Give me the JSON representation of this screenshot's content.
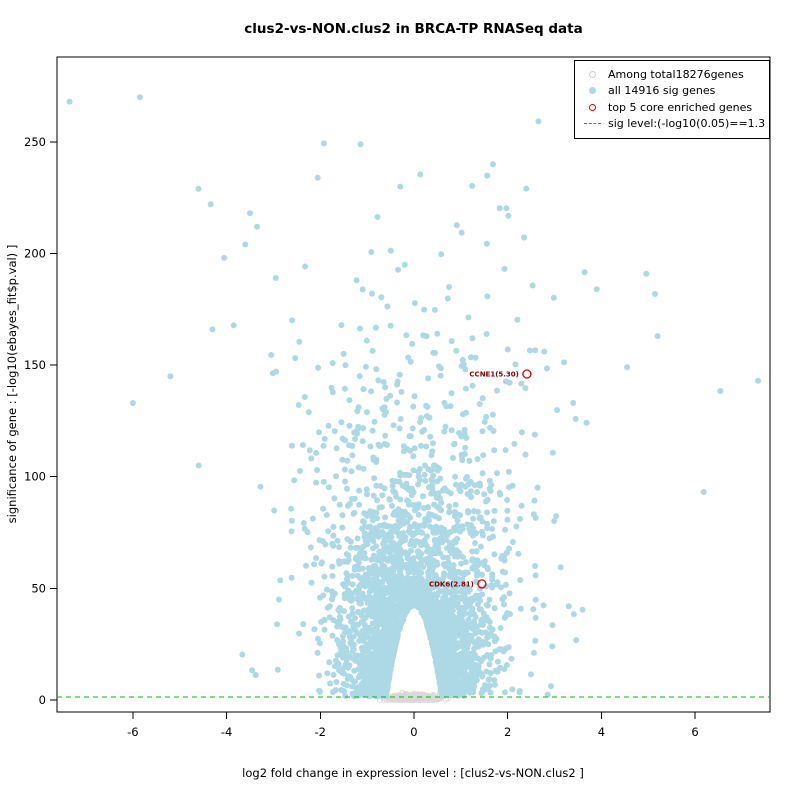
{
  "chart_data": {
    "type": "scatter",
    "title": "clus2-vs-NON.clus2 in BRCA-TP RNASeq data",
    "xlabel": "log2 fold change in expression level : [clus2-vs-NON.clus2 ]",
    "ylabel": "significance of gene : [-log10(ebayes_fit$p.val) ]",
    "xlim": [
      -7.62,
      7.6
    ],
    "ylim": [
      -5.4,
      288
    ],
    "x_ticks": [
      -6,
      -4,
      -2,
      0,
      2,
      4,
      6
    ],
    "y_ticks": [
      0,
      50,
      100,
      150,
      200,
      250
    ],
    "grid": false,
    "legend_position": "top-right",
    "sig_line": {
      "y": 1.3,
      "color": "#00bb00",
      "style": "dashed",
      "label": "sig level:(-log10(0.05)==1.3"
    },
    "legend": {
      "entries": [
        {
          "label": "Among total18276genes",
          "marker": "open-circle",
          "color": "#cfcfcf"
        },
        {
          "label": "all 14916 sig genes",
          "marker": "filled-circle",
          "color": "#add8e6"
        },
        {
          "label": "top 5 core enriched genes",
          "marker": "open-circle",
          "color": "#e00000"
        },
        {
          "label": "sig level:(-log10(0.05)==1.3",
          "marker": "dashed-line",
          "color": "#00bb00"
        }
      ]
    },
    "highlighted_genes": [
      {
        "name": "CCNE1(5.30)",
        "x": 2.41,
        "y": 146,
        "circle_color": "#e00000",
        "label_color": "#8b0000"
      },
      {
        "name": "CDK6(2.81)",
        "x": 1.45,
        "y": 52,
        "circle_color": "#e00000",
        "label_color": "#8b0000"
      }
    ],
    "totals": {
      "total_genes": 18276,
      "sig_genes": 14916,
      "top_core_enriched": 5
    },
    "point_cloud": {
      "seed": 42,
      "sig_points": {
        "count": 4300,
        "color": "#add8e6",
        "radius": 3,
        "y_base": 1.6,
        "y_exp_mean": 34,
        "y_max": 272,
        "x_sigma_base": 0.55,
        "x_sigma_y_coef": 0.006,
        "wide_tail_prob": 0.06,
        "wide_tail_mult": 2.1,
        "dome_height": 42,
        "dome_halfwidth": 0.6,
        "x_max": 7.45
      },
      "nonsig_points": {
        "count": 380,
        "color": "#d9d9d9",
        "radius": 2.6,
        "x_sigma": 0.25,
        "x_max": 0.85,
        "y_max": 3.2
      },
      "outliers": [
        [
          -7.35,
          268
        ],
        [
          -5.85,
          270
        ],
        [
          -4.6,
          229
        ],
        [
          -3.5,
          218
        ],
        [
          -3.35,
          212
        ],
        [
          -3.6,
          204
        ],
        [
          -4.05,
          198
        ],
        [
          -2.95,
          189
        ],
        [
          -2.6,
          170
        ],
        [
          -4.3,
          166
        ],
        [
          -6.0,
          133
        ],
        [
          -5.2,
          145
        ],
        [
          -1.5,
          155
        ],
        [
          2.0,
          157
        ],
        [
          3.9,
          184
        ],
        [
          5.2,
          163
        ],
        [
          4.55,
          149
        ],
        [
          3.4,
          133
        ]
      ]
    }
  }
}
